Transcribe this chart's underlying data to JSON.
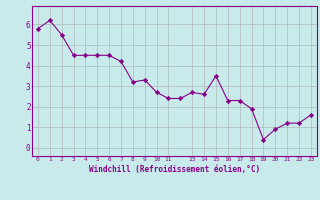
{
  "x": [
    0,
    1,
    2,
    3,
    4,
    5,
    6,
    7,
    8,
    9,
    10,
    11,
    12,
    13,
    14,
    15,
    16,
    17,
    18,
    19,
    20,
    21,
    22,
    23
  ],
  "y": [
    5.8,
    6.2,
    5.5,
    4.5,
    4.5,
    4.5,
    4.5,
    4.2,
    3.2,
    3.3,
    2.7,
    2.4,
    2.4,
    2.7,
    2.6,
    3.5,
    2.3,
    2.3,
    1.9,
    0.4,
    0.9,
    1.2,
    1.2,
    1.6
  ],
  "line_color": "#880088",
  "marker": "D",
  "marker_size": 2.2,
  "bg_color": "#c8eaea",
  "grid_color": "#b0b8b8",
  "xlabel": "Windchill (Refroidissement éolien,°C)",
  "ylabel": "",
  "xlim": [
    -0.5,
    23.5
  ],
  "ylim": [
    -0.4,
    6.9
  ],
  "xticks": [
    0,
    1,
    2,
    3,
    4,
    5,
    6,
    7,
    8,
    9,
    10,
    11,
    13,
    14,
    15,
    16,
    17,
    18,
    19,
    20,
    21,
    22,
    23
  ],
  "yticks": [
    0,
    1,
    2,
    3,
    4,
    5,
    6
  ],
  "tick_color": "#880088",
  "label_color": "#880088",
  "spine_color": "#880088"
}
